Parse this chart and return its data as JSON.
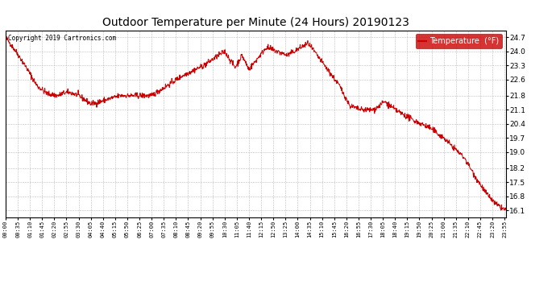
{
  "title": "Outdoor Temperature per Minute (24 Hours) 20190123",
  "copyright_text": "Copyright 2019 Cartronics.com",
  "legend_label": "Temperature  (°F)",
  "line_color": "#cc0000",
  "legend_bg": "#cc0000",
  "legend_text_color": "#ffffff",
  "bg_color": "#ffffff",
  "plot_bg_color": "#ffffff",
  "grid_color": "#bbbbbb",
  "y_ticks": [
    16.1,
    16.8,
    17.5,
    18.2,
    19.0,
    19.7,
    20.4,
    21.1,
    21.8,
    22.6,
    23.3,
    24.0,
    24.7
  ],
  "x_tick_interval_minutes": 35,
  "total_minutes": 1440,
  "y_min": 15.75,
  "y_max": 25.05
}
